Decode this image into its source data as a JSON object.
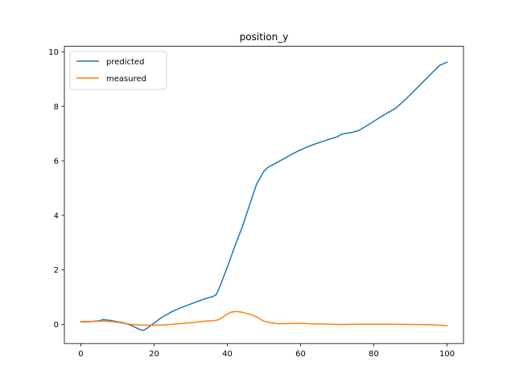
{
  "chart_data": {
    "type": "line",
    "title": "position_y",
    "xlabel": "",
    "ylabel": "",
    "xlim": [
      -4.5,
      104.5
    ],
    "ylim": [
      -0.7,
      10.2
    ],
    "xticks": [
      0,
      20,
      40,
      60,
      80,
      100
    ],
    "yticks": [
      0,
      2,
      4,
      6,
      8,
      10
    ],
    "grid": false,
    "legend": "upper-left",
    "series": [
      {
        "name": "predicted",
        "color": "#1f77b4",
        "x": [
          0,
          2,
          4,
          5,
          6,
          8,
          10,
          12,
          14,
          16,
          17,
          18,
          20,
          22,
          25,
          28,
          30,
          32,
          34,
          36,
          37,
          38,
          40,
          42,
          44,
          46,
          48,
          50,
          51,
          52,
          54,
          56,
          58,
          60,
          62,
          64,
          66,
          68,
          70,
          71,
          72,
          74,
          76,
          78,
          80,
          82,
          84,
          86,
          88,
          90,
          92,
          94,
          96,
          98,
          100
        ],
        "y": [
          0.1,
          0.1,
          0.12,
          0.13,
          0.18,
          0.15,
          0.1,
          0.05,
          -0.05,
          -0.18,
          -0.22,
          -0.15,
          0.05,
          0.25,
          0.48,
          0.65,
          0.75,
          0.85,
          0.95,
          1.02,
          1.1,
          1.4,
          2.1,
          2.85,
          3.55,
          4.35,
          5.15,
          5.62,
          5.75,
          5.83,
          5.97,
          6.12,
          6.27,
          6.4,
          6.52,
          6.62,
          6.71,
          6.8,
          6.88,
          6.96,
          7.0,
          7.04,
          7.12,
          7.28,
          7.45,
          7.62,
          7.78,
          7.93,
          8.17,
          8.43,
          8.7,
          8.97,
          9.24,
          9.5,
          9.62
        ]
      },
      {
        "name": "measured",
        "color": "#ff7f0e",
        "x": [
          0,
          2,
          4,
          6,
          8,
          10,
          12,
          14,
          16,
          18,
          20,
          22,
          24,
          26,
          28,
          30,
          32,
          34,
          36,
          37,
          38,
          40,
          41,
          42,
          43,
          44,
          46,
          48,
          50,
          52,
          54,
          56,
          58,
          60,
          62,
          64,
          66,
          68,
          70,
          72,
          75,
          80,
          85,
          90,
          95,
          100
        ],
        "y": [
          0.11,
          0.11,
          0.11,
          0.12,
          0.11,
          0.08,
          0.04,
          0.0,
          -0.02,
          -0.03,
          -0.03,
          -0.02,
          -0.01,
          0.02,
          0.04,
          0.06,
          0.09,
          0.12,
          0.14,
          0.15,
          0.2,
          0.38,
          0.45,
          0.47,
          0.47,
          0.45,
          0.38,
          0.28,
          0.12,
          0.06,
          0.03,
          0.03,
          0.04,
          0.04,
          0.03,
          0.02,
          0.02,
          0.01,
          0.0,
          0.0,
          0.01,
          0.01,
          0.01,
          0.0,
          -0.01,
          -0.04
        ]
      }
    ]
  }
}
